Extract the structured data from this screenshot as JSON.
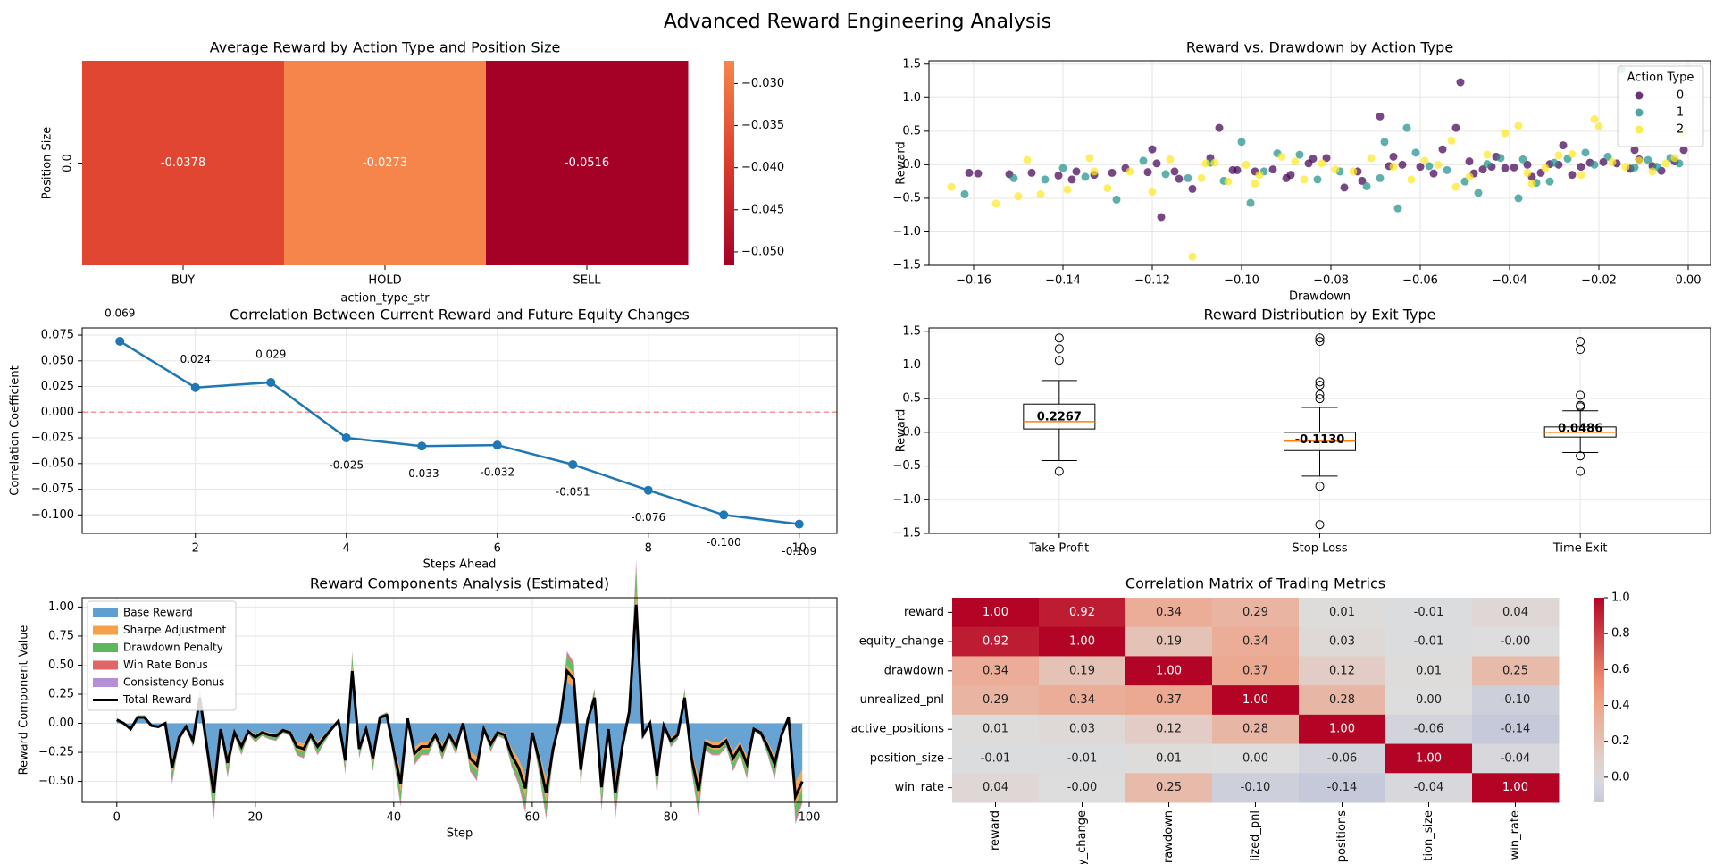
{
  "figure": {
    "title": "Advanced Reward Engineering Analysis"
  },
  "chart_data": [
    {
      "id": "heatmap-action-position",
      "type": "heatmap",
      "title": "Average Reward by Action Type and Position Size",
      "xlabel": "action_type_str",
      "ylabel": "Position Size",
      "x_categories": [
        "BUY",
        "HOLD",
        "SELL"
      ],
      "y_categories": [
        "0.0"
      ],
      "values": [
        [
          -0.0378,
          -0.0273,
          -0.0516
        ]
      ],
      "value_labels": [
        [
          "-0.0378",
          "-0.0273",
          "-0.0516"
        ]
      ],
      "colormap": "RdYlGn-like (red scale)",
      "colorbar": {
        "min": -0.0516,
        "max": -0.0273,
        "ticks": [
          -0.05,
          -0.045,
          -0.04,
          -0.035,
          -0.03
        ],
        "tick_labels": [
          "−0.050",
          "−0.045",
          "−0.040",
          "−0.035",
          "−0.030"
        ]
      }
    },
    {
      "id": "scatter-reward-drawdown",
      "type": "scatter",
      "title": "Reward vs. Drawdown by Action Type",
      "xlabel": "Drawdown",
      "ylabel": "Reward",
      "xlim": [
        -0.17,
        0.005
      ],
      "ylim": [
        -1.5,
        1.55
      ],
      "x_ticks": [
        -0.16,
        -0.14,
        -0.12,
        -0.1,
        -0.08,
        -0.06,
        -0.04,
        -0.02,
        0.0
      ],
      "x_tick_labels": [
        "−0.16",
        "−0.14",
        "−0.12",
        "−0.10",
        "−0.08",
        "−0.06",
        "−0.04",
        "−0.02",
        "0.00"
      ],
      "y_ticks": [
        -1.5,
        -1.0,
        -0.5,
        0.0,
        0.5,
        1.0,
        1.5
      ],
      "y_tick_labels": [
        "−1.5",
        "−1.0",
        "−0.5",
        "0.0",
        "0.5",
        "1.0",
        "1.5"
      ],
      "grid": true,
      "legend": {
        "title": "Action Type",
        "placement": "top-right",
        "entries": [
          "0",
          "1",
          "2"
        ]
      },
      "series": [
        {
          "name": "0",
          "color": "#440154",
          "x": [
            -0.161,
            -0.159,
            -0.152,
            -0.147,
            -0.141,
            -0.137,
            -0.133,
            -0.129,
            -0.126,
            -0.121,
            -0.12,
            -0.118,
            -0.114,
            -0.111,
            -0.107,
            -0.105,
            -0.101,
            -0.097,
            -0.093,
            -0.089,
            -0.085,
            -0.081,
            -0.077,
            -0.073,
            -0.069,
            -0.067,
            -0.064,
            -0.06,
            -0.057,
            -0.055,
            -0.052,
            -0.051,
            -0.049,
            -0.046,
            -0.043,
            -0.041,
            -0.039,
            -0.036,
            -0.033,
            -0.031,
            -0.028,
            -0.026,
            -0.024,
            -0.022,
            -0.019,
            -0.016,
            -0.013,
            -0.011,
            -0.008,
            -0.006,
            -0.003,
            -0.001,
            -0.115,
            -0.119,
            -0.09,
            -0.066,
            -0.048,
            -0.035,
            -0.012,
            -0.102,
            -0.074,
            -0.044,
            -0.029,
            -0.138,
            -0.084
          ],
          "y": [
            -0.12,
            -0.13,
            -0.14,
            -0.12,
            -0.16,
            -0.1,
            -0.15,
            -0.12,
            -0.05,
            -0.11,
            0.23,
            -0.78,
            -0.21,
            -0.36,
            0.1,
            0.55,
            -0.08,
            -0.1,
            -0.07,
            -0.15,
            0.02,
            0.1,
            -0.34,
            -0.24,
            0.72,
            -0.02,
            0.0,
            -0.03,
            -0.13,
            0.23,
            0.55,
            1.23,
            0.05,
            -0.07,
            0.12,
            -0.05,
            -0.04,
            0.0,
            -0.12,
            0.01,
            0.29,
            -0.15,
            -0.03,
            0.03,
            0.04,
            0.02,
            -0.06,
            0.08,
            -0.02,
            -0.09,
            0.05,
            0.22,
            -0.1,
            0.02,
            -0.2,
            0.12,
            -0.13,
            -0.18,
            0.22,
            -0.08,
            -0.1,
            -0.03,
            0.0,
            -0.22,
            0.09
          ]
        },
        {
          "name": "1",
          "color": "#21918c",
          "x": [
            -0.162,
            -0.151,
            -0.144,
            -0.135,
            -0.128,
            -0.122,
            -0.117,
            -0.112,
            -0.104,
            -0.1,
            -0.098,
            -0.092,
            -0.087,
            -0.083,
            -0.078,
            -0.072,
            -0.068,
            -0.065,
            -0.063,
            -0.061,
            -0.058,
            -0.054,
            -0.05,
            -0.047,
            -0.042,
            -0.038,
            -0.037,
            -0.034,
            -0.03,
            -0.027,
            -0.023,
            -0.021,
            -0.018,
            -0.015,
            -0.012,
            -0.009,
            -0.007,
            -0.004,
            -0.002,
            -0.107,
            -0.095,
            -0.069,
            -0.045,
            -0.031,
            -0.14
          ],
          "y": [
            -0.44,
            -0.2,
            -0.22,
            -0.18,
            -0.52,
            0.06,
            -0.14,
            -0.2,
            -0.24,
            0.34,
            -0.57,
            0.17,
            0.15,
            -0.22,
            -0.1,
            -0.32,
            0.34,
            -0.65,
            0.55,
            0.18,
            -0.02,
            -0.08,
            -0.25,
            -0.42,
            0.1,
            -0.5,
            0.08,
            -0.27,
            0.03,
            0.09,
            0.18,
            0.0,
            0.12,
            1.42,
            -0.04,
            0.07,
            -0.03,
            0.1,
            0.02,
            0.03,
            -0.1,
            -0.2,
            0.01,
            -0.25,
            -0.05
          ]
        },
        {
          "name": "2",
          "color": "#fde725",
          "x": [
            -0.165,
            -0.155,
            -0.15,
            -0.148,
            -0.145,
            -0.139,
            -0.134,
            -0.13,
            -0.125,
            -0.12,
            -0.116,
            -0.111,
            -0.109,
            -0.106,
            -0.103,
            -0.099,
            -0.096,
            -0.091,
            -0.086,
            -0.082,
            -0.079,
            -0.075,
            -0.071,
            -0.066,
            -0.062,
            -0.059,
            -0.056,
            -0.053,
            -0.049,
            -0.045,
            -0.041,
            -0.038,
            -0.035,
            -0.032,
            -0.029,
            -0.026,
            -0.024,
            -0.021,
            -0.017,
            -0.014,
            -0.011,
            -0.008,
            -0.005,
            -0.003,
            -0.001,
            -0.097,
            -0.088,
            -0.052,
            -0.036,
            -0.02,
            -0.133,
            -0.108
          ],
          "y": [
            -0.33,
            -0.58,
            -0.47,
            0.07,
            -0.44,
            -0.37,
            0.1,
            -0.35,
            -0.1,
            -0.4,
            0.08,
            -1.37,
            -0.2,
            0.03,
            -0.25,
            0.0,
            -0.15,
            0.12,
            -0.22,
            0.02,
            -0.07,
            -0.1,
            0.1,
            -0.03,
            -0.22,
            0.06,
            0.0,
            0.36,
            -0.18,
            0.15,
            0.47,
            0.58,
            -0.28,
            -0.05,
            0.14,
            0.16,
            -0.15,
            0.68,
            0.04,
            -0.03,
            0.06,
            -0.1,
            0.02,
            0.1,
            0.48,
            -0.28,
            0.05,
            -0.33,
            -0.12,
            0.57,
            -0.1,
            0.02
          ]
        }
      ]
    },
    {
      "id": "line-correlation-future",
      "type": "line",
      "title": "Correlation Between Current Reward and Future Equity Changes",
      "xlabel": "Steps Ahead",
      "ylabel": "Correlation Coefficient",
      "xlim": [
        0.5,
        10.5
      ],
      "ylim": [
        -0.118,
        0.082
      ],
      "x_ticks": [
        2,
        4,
        6,
        8,
        10
      ],
      "x_tick_labels": [
        "2",
        "4",
        "6",
        "8",
        "10"
      ],
      "y_ticks": [
        -0.1,
        -0.075,
        -0.05,
        -0.025,
        0.0,
        0.025,
        0.05,
        0.075
      ],
      "y_tick_labels": [
        "−0.100",
        "−0.075",
        "−0.050",
        "−0.025",
        "0.000",
        "0.025",
        "0.050",
        "0.075"
      ],
      "grid": true,
      "reference_line": 0.0,
      "x": [
        1,
        2,
        3,
        4,
        5,
        6,
        7,
        8,
        9,
        10
      ],
      "values": [
        0.069,
        0.024,
        0.029,
        -0.025,
        -0.033,
        -0.032,
        -0.051,
        -0.076,
        -0.1,
        -0.109
      ],
      "labels": [
        "0.069",
        "0.024",
        "0.029",
        "-0.025",
        "-0.033",
        "-0.032",
        "-0.051",
        "-0.076",
        "-0.100",
        "-0.109"
      ]
    },
    {
      "id": "box-exit-type",
      "type": "box",
      "title": "Reward Distribution by Exit Type",
      "ylabel": "Reward",
      "ylim": [
        -1.5,
        1.55
      ],
      "y_ticks": [
        -1.5,
        -1.0,
        -0.5,
        0.0,
        0.5,
        1.0,
        1.5
      ],
      "y_tick_labels": [
        "−1.5",
        "−1.0",
        "−0.5",
        "0.0",
        "0.5",
        "1.0",
        "1.5"
      ],
      "grid": true,
      "categories": [
        "Take Profit",
        "Stop Loss",
        "Time Exit"
      ],
      "boxes": [
        {
          "q1": 0.05,
          "median": 0.16,
          "q3": 0.42,
          "whisker_low": -0.42,
          "whisker_high": 0.77,
          "outliers": [
            -0.58,
            1.07,
            1.24,
            1.4
          ],
          "mean_label": "0.2267",
          "mean": 0.2267
        },
        {
          "q1": -0.27,
          "median": -0.13,
          "q3": 0.0,
          "whisker_low": -0.65,
          "whisker_high": 0.37,
          "outliers": [
            -1.37,
            -0.8,
            0.5,
            0.56,
            0.7,
            0.75,
            1.35,
            1.4
          ],
          "mean_label": "-0.1130",
          "mean": -0.113
        },
        {
          "q1": -0.07,
          "median": 0.0,
          "q3": 0.08,
          "whisker_low": -0.3,
          "whisker_high": 0.32,
          "outliers": [
            -0.58,
            -0.35,
            0.38,
            0.4,
            0.55,
            1.23,
            1.35
          ],
          "mean_label": "0.0486",
          "mean": 0.0486
        }
      ]
    },
    {
      "id": "area-reward-components",
      "type": "area",
      "title": "Reward Components Analysis (Estimated)",
      "xlabel": "Step",
      "ylabel": "Reward Component Value",
      "xlim": [
        -5,
        104
      ],
      "ylim": [
        -0.68,
        1.08
      ],
      "x_ticks": [
        0,
        20,
        40,
        60,
        80,
        100
      ],
      "x_tick_labels": [
        "0",
        "20",
        "40",
        "60",
        "80",
        "100"
      ],
      "y_ticks": [
        -0.5,
        -0.25,
        0.0,
        0.25,
        0.5,
        0.75,
        1.0
      ],
      "y_tick_labels": [
        "−0.50",
        "−0.25",
        "0.00",
        "0.25",
        "0.50",
        "0.75",
        "1.00"
      ],
      "grid": true,
      "legend": {
        "placement": "top-left",
        "entries": [
          "Base Reward",
          "Sharpe Adjustment",
          "Drawdown Penalty",
          "Win Rate Bonus",
          "Consistency Bonus",
          "Total Reward"
        ]
      },
      "colors": {
        "Base Reward": "#5f9ed1",
        "Sharpe Adjustment": "#f5a04a",
        "Drawdown Penalty": "#5cb85c",
        "Win Rate Bonus": "#e06666",
        "Consistency Bonus": "#b48fd6",
        "Total Reward": "#000000"
      },
      "total_reward": [
        0.03,
        0.0,
        -0.05,
        0.05,
        0.05,
        -0.02,
        -0.03,
        0.0,
        -0.38,
        -0.12,
        -0.03,
        -0.15,
        0.22,
        -0.2,
        -0.6,
        -0.05,
        -0.34,
        -0.08,
        -0.2,
        -0.07,
        -0.12,
        -0.08,
        -0.1,
        -0.11,
        -0.06,
        -0.08,
        -0.2,
        -0.22,
        -0.1,
        -0.2,
        -0.12,
        -0.05,
        0.02,
        -0.32,
        0.45,
        -0.22,
        -0.05,
        -0.3,
        0.05,
        0.07,
        -0.24,
        -0.52,
        0.04,
        -0.26,
        -0.2,
        -0.2,
        -0.1,
        -0.23,
        -0.1,
        -0.2,
        0.0,
        -0.3,
        -0.36,
        -0.05,
        -0.18,
        -0.08,
        -0.1,
        -0.27,
        -0.38,
        -0.56,
        -0.08,
        -0.32,
        -0.6,
        -0.22,
        0.02,
        0.45,
        0.38,
        -0.4,
        0.03,
        0.22,
        -0.55,
        -0.05,
        -0.6,
        -0.2,
        0.1,
        1.02,
        -0.1,
        0.0,
        -0.45,
        -0.02,
        -0.15,
        -0.1,
        0.22,
        -0.3,
        -0.58,
        -0.17,
        -0.2,
        -0.2,
        -0.15,
        -0.3,
        -0.2,
        -0.35,
        -0.05,
        -0.08,
        -0.2,
        -0.35,
        -0.1,
        0.05,
        -0.63,
        -0.5
      ],
      "shares": {
        "Base Reward": 0.8,
        "Sharpe Adjustment": 0.32,
        "Drawdown Penalty": 0.18,
        "Win Rate Bonus": 0.05,
        "Consistency Bonus": 0.03
      }
    },
    {
      "id": "heatmap-correlation-matrix",
      "type": "heatmap",
      "title": "Correlation Matrix of Trading Metrics",
      "row_labels": [
        "reward",
        "equity_change",
        "drawdown",
        "unrealized_pnl",
        "active_positions",
        "position_size",
        "win_rate"
      ],
      "col_labels_visible": [
        "reward",
        "y_change",
        "rawdown",
        "lized_pnl",
        "positions",
        "tion_size",
        "win_rate"
      ],
      "values": [
        [
          1.0,
          0.92,
          0.34,
          0.29,
          0.01,
          -0.01,
          0.04
        ],
        [
          0.92,
          1.0,
          0.19,
          0.34,
          0.03,
          -0.01,
          -0.0
        ],
        [
          0.34,
          0.19,
          1.0,
          0.37,
          0.12,
          0.01,
          0.25
        ],
        [
          0.29,
          0.34,
          0.37,
          1.0,
          0.28,
          0.0,
          -0.1
        ],
        [
          0.01,
          0.03,
          0.12,
          0.28,
          1.0,
          -0.06,
          -0.14
        ],
        [
          -0.01,
          -0.01,
          0.01,
          0.0,
          -0.06,
          1.0,
          -0.04
        ],
        [
          0.04,
          -0.0,
          0.25,
          -0.1,
          -0.14,
          -0.04,
          1.0
        ]
      ],
      "value_labels": [
        [
          "1.00",
          "0.92",
          "0.34",
          "0.29",
          "0.01",
          "-0.01",
          "0.04"
        ],
        [
          "0.92",
          "1.00",
          "0.19",
          "0.34",
          "0.03",
          "-0.01",
          "-0.00"
        ],
        [
          "0.34",
          "0.19",
          "1.00",
          "0.37",
          "0.12",
          "0.01",
          "0.25"
        ],
        [
          "0.29",
          "0.34",
          "0.37",
          "1.00",
          "0.28",
          "0.00",
          "-0.10"
        ],
        [
          "0.01",
          "0.03",
          "0.12",
          "0.28",
          "1.00",
          "-0.06",
          "-0.14"
        ],
        [
          "-0.01",
          "-0.01",
          "0.01",
          "0.00",
          "-0.06",
          "1.00",
          "-0.04"
        ],
        [
          "0.04",
          "-0.00",
          "0.25",
          "-0.10",
          "-0.14",
          "-0.04",
          "1.00"
        ]
      ],
      "colormap": "coolwarm (center 0)",
      "colorbar": {
        "min": -0.14,
        "max": 1.0,
        "ticks": [
          0.0,
          0.2,
          0.4,
          0.6,
          0.8,
          1.0
        ],
        "tick_labels": [
          "0.0",
          "0.2",
          "0.4",
          "0.6",
          "0.8",
          "1.0"
        ]
      }
    }
  ]
}
